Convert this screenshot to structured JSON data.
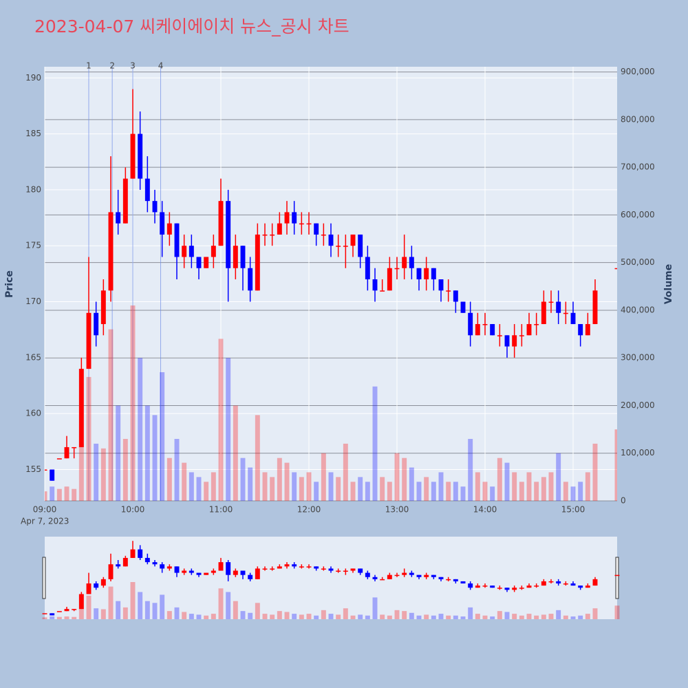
{
  "chart_data": {
    "type": "candlestick",
    "title": "2023-04-07 씨케이에이치 뉴스_공시 차트",
    "y_title": "Price",
    "y2_title": "Volume",
    "x_date_label": "Apr 7, 2023",
    "increasing_color": "#ff0000",
    "decreasing_color": "#0000ff",
    "x": [
      "09:00",
      "09:05",
      "09:10",
      "09:15",
      "09:20",
      "09:25",
      "09:30",
      "09:35",
      "09:40",
      "09:45",
      "09:50",
      "09:55",
      "10:00",
      "10:05",
      "10:10",
      "10:15",
      "10:20",
      "10:25",
      "10:30",
      "10:35",
      "10:40",
      "10:45",
      "10:50",
      "10:55",
      "11:00",
      "11:05",
      "11:10",
      "11:15",
      "11:20",
      "11:25",
      "11:30",
      "11:35",
      "11:40",
      "11:45",
      "11:50",
      "11:55",
      "12:00",
      "12:05",
      "12:10",
      "12:15",
      "12:20",
      "12:25",
      "12:30",
      "12:35",
      "12:40",
      "12:45",
      "12:50",
      "12:55",
      "13:00",
      "13:05",
      "13:10",
      "13:15",
      "13:20",
      "13:25",
      "13:30",
      "13:35",
      "13:40",
      "13:45",
      "13:50",
      "13:55",
      "14:00",
      "14:05",
      "14:10",
      "14:15",
      "14:20",
      "14:25",
      "14:30",
      "14:35",
      "14:40",
      "14:45",
      "14:50",
      "14:55",
      "15:00",
      "15:05",
      "15:10",
      "15:15",
      "15:30"
    ],
    "open": [
      155,
      155,
      156,
      156,
      157,
      157,
      164,
      169,
      168,
      171,
      178,
      177,
      181,
      185,
      181,
      179,
      178,
      176,
      177,
      174,
      175,
      174,
      173,
      174,
      175,
      179,
      173,
      175,
      173,
      171,
      176,
      176,
      176,
      177,
      178,
      177,
      177,
      177,
      176,
      176,
      175,
      175,
      175,
      176,
      174,
      172,
      171,
      171,
      173,
      173,
      174,
      173,
      172,
      173,
      172,
      171,
      171,
      170,
      169,
      167,
      168,
      168,
      167,
      167,
      166,
      167,
      167,
      168,
      168,
      170,
      170,
      169,
      169,
      168,
      167,
      168,
      173
    ],
    "high": [
      155,
      155,
      156,
      158,
      157,
      165,
      174,
      170,
      172,
      183,
      180,
      182,
      189,
      187,
      183,
      180,
      179,
      178,
      177,
      176,
      176,
      174,
      174,
      176,
      181,
      180,
      176,
      175,
      174,
      177,
      177,
      177,
      178,
      179,
      179,
      178,
      178,
      177,
      177,
      177,
      176,
      176,
      176,
      176,
      175,
      173,
      172,
      174,
      174,
      176,
      175,
      173,
      174,
      173,
      172,
      172,
      171,
      170,
      170,
      169,
      169,
      168,
      168,
      167,
      168,
      168,
      169,
      169,
      171,
      171,
      171,
      170,
      170,
      168,
      169,
      172,
      173
    ],
    "low": [
      155,
      154,
      156,
      156,
      156,
      157,
      164,
      166,
      167,
      170,
      176,
      177,
      181,
      180,
      178,
      177,
      174,
      175,
      172,
      173,
      173,
      172,
      173,
      173,
      175,
      170,
      172,
      171,
      170,
      171,
      175,
      175,
      176,
      176,
      176,
      176,
      176,
      175,
      175,
      174,
      174,
      173,
      174,
      173,
      171,
      170,
      171,
      171,
      172,
      172,
      172,
      171,
      171,
      171,
      170,
      170,
      169,
      169,
      166,
      167,
      167,
      167,
      166,
      165,
      165,
      166,
      167,
      167,
      168,
      169,
      168,
      168,
      168,
      166,
      167,
      168,
      173
    ],
    "close": [
      155,
      154,
      156,
      157,
      157,
      164,
      169,
      167,
      171,
      178,
      177,
      181,
      185,
      181,
      179,
      178,
      176,
      177,
      174,
      175,
      174,
      173,
      174,
      175,
      179,
      173,
      175,
      173,
      171,
      176,
      176,
      176,
      177,
      178,
      177,
      177,
      177,
      176,
      176,
      175,
      175,
      175,
      176,
      174,
      172,
      171,
      171,
      173,
      173,
      174,
      173,
      172,
      173,
      172,
      171,
      171,
      170,
      169,
      167,
      168,
      168,
      167,
      167,
      166,
      167,
      167,
      168,
      168,
      170,
      170,
      169,
      169,
      168,
      167,
      168,
      171,
      173
    ],
    "volume": [
      20000,
      30000,
      25000,
      30000,
      25000,
      120000,
      260000,
      120000,
      110000,
      360000,
      200000,
      130000,
      410000,
      300000,
      200000,
      180000,
      270000,
      90000,
      130000,
      80000,
      60000,
      50000,
      40000,
      60000,
      340000,
      300000,
      200000,
      90000,
      70000,
      180000,
      60000,
      50000,
      90000,
      80000,
      60000,
      50000,
      60000,
      40000,
      100000,
      60000,
      50000,
      120000,
      40000,
      50000,
      40000,
      240000,
      50000,
      40000,
      100000,
      90000,
      70000,
      40000,
      50000,
      40000,
      60000,
      40000,
      40000,
      30000,
      130000,
      60000,
      40000,
      30000,
      90000,
      80000,
      60000,
      40000,
      60000,
      40000,
      50000,
      60000,
      100000,
      40000,
      30000,
      40000,
      60000,
      120000,
      150000
    ],
    "xlim": [
      "09:00",
      "15:30"
    ],
    "xticks": [
      "09:00",
      "10:00",
      "11:00",
      "12:00",
      "13:00",
      "14:00",
      "15:00"
    ],
    "ylim": [
      152.2,
      191.0
    ],
    "yticks": [
      155,
      160,
      165,
      170,
      175,
      180,
      185,
      190
    ],
    "y2lim": [
      0,
      911000
    ],
    "y2ticks": [
      0,
      {
        "value": 100000,
        "label": "100,000"
      },
      {
        "value": 200000,
        "label": "200,000"
      },
      {
        "value": 300000,
        "label": "300,000"
      },
      {
        "value": 400000,
        "label": "400,000"
      },
      {
        "value": 500000,
        "label": "500,000"
      },
      {
        "value": 600000,
        "label": "600,000"
      },
      {
        "value": 700000,
        "label": "700,000"
      },
      {
        "value": 800000,
        "label": "800,000"
      },
      {
        "value": 900000,
        "label": "900,000"
      }
    ],
    "vlines": [
      {
        "x": "09:30",
        "label": "1"
      },
      {
        "x": "09:46",
        "label": "2"
      },
      {
        "x": "10:00",
        "label": "3"
      },
      {
        "x": "10:19",
        "label": "4"
      }
    ],
    "grid": true
  }
}
